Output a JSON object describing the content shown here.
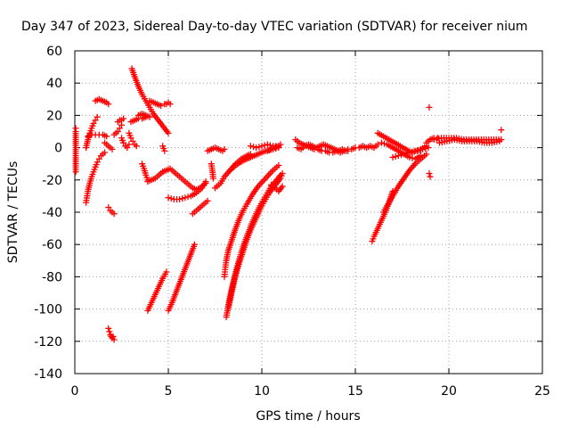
{
  "chart_data": {
    "type": "scatter",
    "title": "Day 347 of 2023, Sidereal Day-to-day VTEC variation (SDTVAR) for receiver nium",
    "xlabel": "GPS time / hours",
    "ylabel": "SDTVAR / TECUs",
    "xlim": [
      0,
      25
    ],
    "ylim": [
      -140,
      60
    ],
    "xticks": [
      0,
      5,
      10,
      15,
      20,
      25
    ],
    "yticks": [
      -140,
      -120,
      -100,
      -80,
      -60,
      -40,
      -20,
      0,
      20,
      40,
      60
    ],
    "grid": true,
    "marker": "+",
    "color": "#ff0000",
    "series": [
      {
        "name": "seg-01",
        "x": [
          0.05,
          0.05,
          0.05
        ],
        "y": [
          12,
          10,
          -15
        ]
      },
      {
        "name": "seg-02",
        "x": [
          0.6,
          0.7,
          0.8,
          0.9,
          1.0,
          1.1,
          1.2
        ],
        "y": [
          0,
          5,
          9,
          12,
          15,
          17,
          19
        ]
      },
      {
        "name": "seg-03",
        "x": [
          0.6,
          0.7,
          0.8,
          0.9,
          1.0,
          1.1,
          1.2,
          1.3,
          1.4,
          1.5,
          1.6
        ],
        "y": [
          -34,
          -27,
          -22,
          -18,
          -15,
          -12,
          -9,
          -7,
          -5,
          -4,
          -3
        ]
      },
      {
        "name": "seg-04",
        "x": [
          0.7,
          0.9,
          1.1,
          1.3,
          1.5,
          1.7
        ],
        "y": [
          7,
          8,
          8,
          8,
          8,
          7
        ]
      },
      {
        "name": "seg-05",
        "x": [
          1.1,
          1.3,
          1.5,
          1.7,
          1.8
        ],
        "y": [
          29,
          30,
          29,
          28,
          27
        ]
      },
      {
        "name": "seg-06",
        "x": [
          1.6,
          1.7,
          1.8,
          1.9,
          2.0
        ],
        "y": [
          3,
          2,
          1,
          0,
          -1
        ]
      },
      {
        "name": "seg-07",
        "x": [
          1.8,
          1.9,
          2.0,
          2.1
        ],
        "y": [
          -37,
          -39,
          -40,
          -41
        ]
      },
      {
        "name": "seg-08",
        "x": [
          1.8,
          1.85,
          1.9,
          1.95,
          2.0,
          2.05,
          2.1
        ],
        "y": [
          -112,
          -114,
          -116,
          -117,
          -118,
          -117,
          -119
        ]
      },
      {
        "name": "seg-09",
        "x": [
          2.1,
          2.2,
          2.3,
          2.4,
          2.5
        ],
        "y": [
          8,
          9,
          10,
          12,
          14
        ]
      },
      {
        "name": "seg-10",
        "x": [
          2.3,
          2.4,
          2.5,
          2.6
        ],
        "y": [
          16,
          17,
          17,
          18
        ]
      },
      {
        "name": "seg-11",
        "x": [
          2.5,
          2.6,
          2.7,
          2.8,
          2.9
        ],
        "y": [
          6,
          3,
          1,
          0,
          2
        ]
      },
      {
        "name": "seg-12",
        "x": [
          2.9,
          3.0,
          3.1,
          3.2,
          3.3
        ],
        "y": [
          9,
          6,
          4,
          2,
          1
        ]
      },
      {
        "name": "seg-13",
        "x": [
          3.05,
          3.2,
          3.4,
          3.6,
          3.8,
          4.0,
          4.2,
          4.4,
          4.6,
          4.8,
          5.0
        ],
        "y": [
          49,
          44,
          38,
          33,
          29,
          25,
          21,
          18,
          15,
          12,
          9
        ]
      },
      {
        "name": "seg-14",
        "x": [
          3.0,
          3.2,
          3.4,
          3.6,
          3.8
        ],
        "y": [
          16,
          17,
          18,
          18,
          19
        ]
      },
      {
        "name": "seg-15",
        "x": [
          3.4,
          3.6,
          3.8,
          4.0
        ],
        "y": [
          20,
          21,
          20,
          19
        ]
      },
      {
        "name": "seg-16",
        "x": [
          3.6,
          3.7,
          3.8,
          3.9
        ],
        "y": [
          -10,
          -13,
          -17,
          -20
        ]
      },
      {
        "name": "seg-17",
        "x": [
          3.9,
          4.1,
          4.3,
          4.5,
          4.7
        ],
        "y": [
          -21,
          -20,
          -19,
          -17,
          -15
        ]
      },
      {
        "name": "seg-18",
        "x": [
          4.0,
          4.2,
          4.4,
          4.6
        ],
        "y": [
          29,
          28,
          27,
          26
        ]
      },
      {
        "name": "seg-19",
        "x": [
          4.8,
          4.9,
          5.0,
          5.1
        ],
        "y": [
          27,
          27,
          28,
          27
        ]
      },
      {
        "name": "seg-20",
        "x": [
          4.7,
          4.8
        ],
        "y": [
          1,
          -2
        ]
      },
      {
        "name": "seg-21",
        "x": [
          4.7,
          4.9,
          5.1,
          5.3,
          5.5,
          5.7,
          5.9,
          6.1,
          6.3,
          6.5,
          6.7,
          6.9,
          7.0
        ],
        "y": [
          -15,
          -14,
          -13,
          -15,
          -17,
          -19,
          -21,
          -23,
          -25,
          -26,
          -25,
          -23,
          -22
        ]
      },
      {
        "name": "seg-22",
        "x": [
          5.0,
          5.3,
          5.6,
          5.9,
          6.2,
          6.5,
          6.8,
          7.0
        ],
        "y": [
          -31,
          -32,
          -32,
          -31,
          -30,
          -28,
          -25,
          -21
        ]
      },
      {
        "name": "seg-23",
        "x": [
          3.9,
          4.1,
          4.3,
          4.5,
          4.7,
          4.9
        ],
        "y": [
          -101,
          -96,
          -91,
          -86,
          -81,
          -77
        ]
      },
      {
        "name": "seg-24",
        "x": [
          5.0,
          5.2,
          5.4,
          5.6,
          5.8,
          6.0,
          6.2,
          6.4
        ],
        "y": [
          -101,
          -96,
          -90,
          -84,
          -78,
          -72,
          -66,
          -60
        ]
      },
      {
        "name": "seg-25",
        "x": [
          6.3,
          6.5,
          6.7,
          6.9,
          7.1
        ],
        "y": [
          -41,
          -39,
          -37,
          -35,
          -33
        ]
      },
      {
        "name": "seg-26",
        "x": [
          7.1,
          7.3,
          7.5,
          7.7,
          7.9,
          8.0
        ],
        "y": [
          -2,
          -1,
          0,
          -1,
          -2,
          -1
        ]
      },
      {
        "name": "seg-27",
        "x": [
          7.3,
          7.35,
          7.4
        ],
        "y": [
          -10,
          -14,
          -19
        ]
      },
      {
        "name": "seg-28",
        "x": [
          8.0,
          8.05,
          8.1,
          8.2,
          8.4,
          8.6,
          8.8,
          9.0,
          9.2,
          9.5,
          9.8,
          10.2,
          10.6,
          10.9
        ],
        "y": [
          -80,
          -74,
          -70,
          -64,
          -57,
          -50,
          -44,
          -39,
          -35,
          -29,
          -24,
          -19,
          -14,
          -11
        ]
      },
      {
        "name": "seg-29",
        "x": [
          8.1,
          8.3,
          8.5,
          8.7,
          8.9,
          9.1,
          9.3,
          9.5,
          9.7,
          9.9,
          10.1,
          10.3,
          10.5,
          10.8,
          11.0
        ],
        "y": [
          -105,
          -92,
          -82,
          -73,
          -65,
          -58,
          -52,
          -46,
          -41,
          -36,
          -32,
          -28,
          -24,
          -20,
          -17
        ]
      },
      {
        "name": "seg-30",
        "x": [
          8.2,
          8.4,
          8.6,
          8.8,
          9.0,
          9.2,
          9.4,
          9.6,
          9.8,
          10.0,
          10.2,
          10.4,
          10.6,
          10.8,
          11.0,
          11.1
        ],
        "y": [
          -100,
          -89,
          -79,
          -71,
          -64,
          -57,
          -51,
          -46,
          -41,
          -36,
          -32,
          -28,
          -25,
          -22,
          -19,
          -16
        ]
      },
      {
        "name": "seg-31",
        "x": [
          10.5,
          10.7,
          10.9,
          11.1
        ],
        "y": [
          -23,
          -25,
          -27,
          -24
        ]
      },
      {
        "name": "seg-32",
        "x": [
          7.5,
          7.8,
          8.0,
          8.3,
          8.6,
          8.9,
          9.2,
          9.4
        ],
        "y": [
          -25,
          -22,
          -18,
          -14,
          -10,
          -7,
          -5,
          -4
        ]
      },
      {
        "name": "seg-33",
        "x": [
          8.3,
          8.6,
          9.0,
          9.4,
          9.8,
          10.2,
          10.6,
          10.9
        ],
        "y": [
          -14,
          -11,
          -8,
          -6,
          -4,
          -2,
          -1,
          0
        ]
      },
      {
        "name": "seg-34",
        "x": [
          9.4,
          9.7,
          10.0,
          10.3,
          10.6,
          10.9
        ],
        "y": [
          1,
          0,
          1,
          2,
          1,
          1
        ]
      },
      {
        "name": "seg-35",
        "x": [
          10.3,
          10.5,
          10.7,
          10.9,
          11.0
        ],
        "y": [
          -2,
          -1,
          0,
          1,
          2
        ]
      },
      {
        "name": "seg-36",
        "x": [
          11.8,
          12.0,
          12.2,
          12.4,
          12.6,
          12.8,
          13.0,
          13.2,
          13.4,
          13.6,
          13.8,
          14.0,
          14.2,
          14.4,
          14.6
        ],
        "y": [
          5,
          3,
          2,
          1,
          0,
          -1,
          -1,
          -2,
          -2,
          -3,
          -3,
          -2,
          -3,
          -2,
          -2
        ]
      },
      {
        "name": "seg-37",
        "x": [
          11.9,
          12.1,
          12.3,
          12.5,
          12.7,
          12.9,
          13.1,
          13.3,
          13.5,
          13.7,
          13.9,
          14.1,
          14.3,
          14.5
        ],
        "y": [
          0,
          -1,
          1,
          2,
          1,
          0,
          1,
          2,
          1,
          0,
          -1,
          -2,
          -1,
          -2
        ]
      },
      {
        "name": "seg-38",
        "x": [
          14.6,
          14.8,
          15.0,
          15.2,
          15.4,
          15.6,
          15.8,
          16.0,
          16.2
        ],
        "y": [
          -1,
          -1,
          0,
          0,
          1,
          0,
          1,
          0,
          2
        ]
      },
      {
        "name": "seg-39",
        "x": [
          15.9,
          16.0,
          16.2,
          16.4,
          16.6,
          16.8,
          17.0
        ],
        "y": [
          -58,
          -55,
          -50,
          -45,
          -40,
          -34,
          -27
        ]
      },
      {
        "name": "seg-40",
        "x": [
          16.5,
          16.7,
          17.0,
          17.3,
          17.6,
          17.9,
          18.2,
          18.5,
          18.8
        ],
        "y": [
          -40,
          -36,
          -30,
          -24,
          -19,
          -14,
          -10,
          -7,
          -4
        ]
      },
      {
        "name": "seg-41",
        "x": [
          16.2,
          16.5,
          16.8,
          17.1,
          17.4,
          17.7,
          18.0,
          18.3,
          18.6,
          18.9
        ],
        "y": [
          9,
          7,
          5,
          3,
          1,
          -1,
          -3,
          -2,
          -1,
          0
        ]
      },
      {
        "name": "seg-42",
        "x": [
          16.4,
          16.7,
          17.0,
          17.3,
          17.6,
          17.9,
          18.2,
          18.5
        ],
        "y": [
          3,
          2,
          0,
          -2,
          -4,
          -6,
          -7,
          -5
        ]
      },
      {
        "name": "seg-43",
        "x": [
          17.0,
          17.3,
          17.6,
          17.9,
          18.2,
          18.5,
          18.8
        ],
        "y": [
          -6,
          -5,
          -4,
          -3,
          -2,
          -1,
          1
        ]
      },
      {
        "name": "seg-44",
        "x": [
          18.8,
          19.0,
          19.2,
          19.4
        ],
        "y": [
          3,
          5,
          6,
          6
        ]
      },
      {
        "name": "seg-45",
        "x": [
          18.95
        ],
        "y": [
          25
        ]
      },
      {
        "name": "seg-46",
        "x": [
          18.95,
          19.0
        ],
        "y": [
          -16,
          -18
        ]
      },
      {
        "name": "seg-47",
        "x": [
          19.2,
          19.6,
          20.0,
          20.4,
          20.8,
          21.2,
          21.6,
          22.0,
          22.4,
          22.8
        ],
        "y": [
          5,
          6,
          6,
          6,
          5,
          5,
          5,
          5,
          5,
          5
        ]
      },
      {
        "name": "seg-48",
        "x": [
          19.5,
          19.9,
          20.3,
          20.7,
          21.1,
          21.5,
          21.9,
          22.3,
          22.7
        ],
        "y": [
          3,
          4,
          5,
          4,
          4,
          4,
          3,
          3,
          4
        ]
      },
      {
        "name": "seg-49",
        "x": [
          22.8
        ],
        "y": [
          11
        ]
      }
    ]
  }
}
